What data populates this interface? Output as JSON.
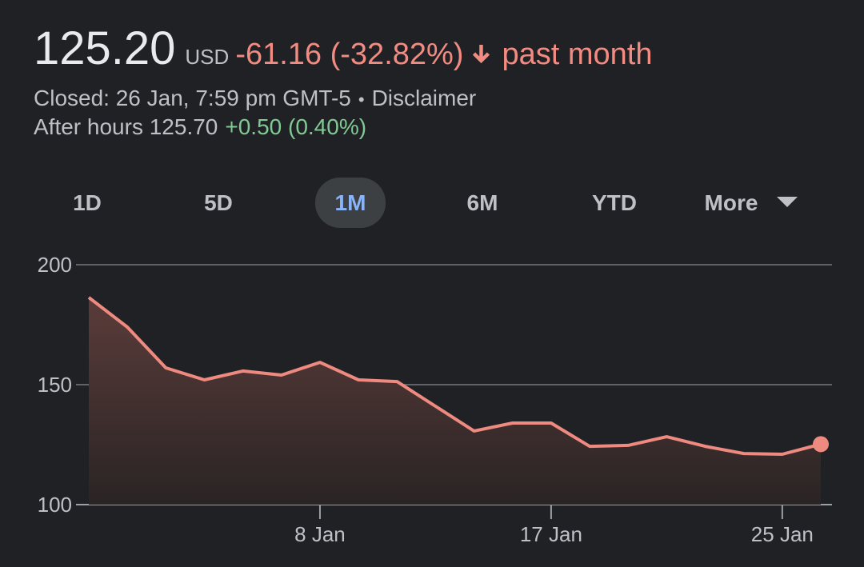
{
  "quote": {
    "price": "125.20",
    "currency": "USD",
    "change": "-61.16 (-32.82%)",
    "period": "past month",
    "status": "Closed: 26 Jan, 7:59 pm GMT-5",
    "separator": "•",
    "disclaimer": "Disclaimer",
    "after_hours_label": "After hours 125.70",
    "after_hours_change": "+0.50 (0.40%)"
  },
  "tabs": [
    "1D",
    "5D",
    "1M",
    "6M",
    "YTD",
    "More"
  ],
  "selected_tab": 2,
  "chart_data": {
    "type": "line",
    "color": "#ee8a80",
    "categories": [
      null,
      null,
      null,
      null,
      null,
      null,
      "8 Jan",
      null,
      null,
      null,
      null,
      null,
      "17 Jan",
      null,
      null,
      null,
      null,
      null,
      "25 Jan",
      null
    ],
    "values": [
      186.36,
      174,
      157,
      152,
      155.7,
      154,
      159.3,
      152,
      151.3,
      141,
      130.7,
      134,
      134,
      124.3,
      124.7,
      128.3,
      124.3,
      121.3,
      121,
      125.2
    ],
    "ylim": [
      100,
      200
    ],
    "yticks": [
      100,
      150,
      200
    ],
    "grid": true
  }
}
